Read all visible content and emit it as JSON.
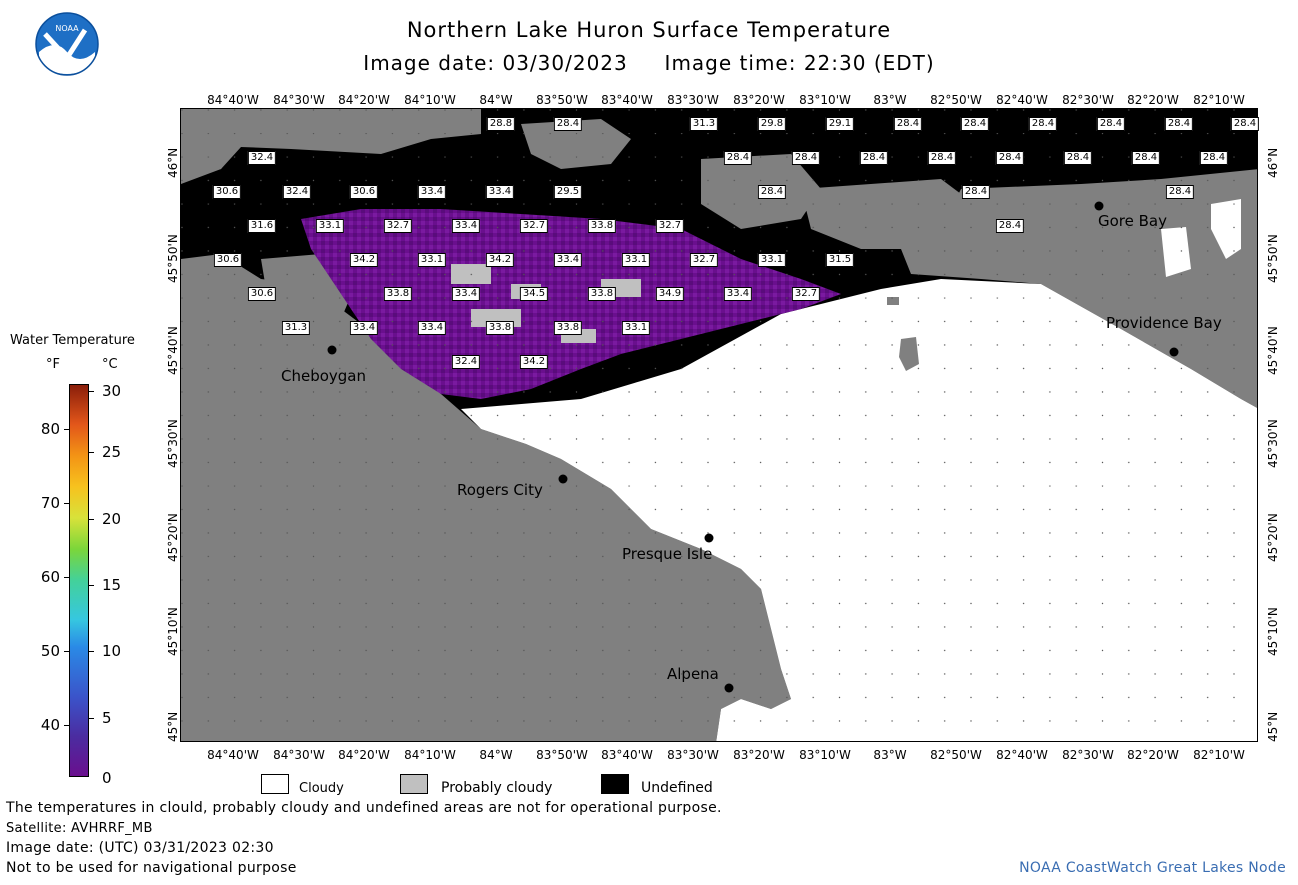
{
  "header": {
    "title": "Northern Lake Huron Surface Temperature",
    "subtitle": "Image date: 03/30/2023     Image time: 22:30 (EDT)",
    "logo_text": "NOAA"
  },
  "map": {
    "lon_labels": [
      "84°40'W",
      "84°30'W",
      "84°20'W",
      "84°10'W",
      "84°W",
      "83°50'W",
      "83°40'W",
      "83°30'W",
      "83°20'W",
      "83°10'W",
      "83°W",
      "82°50'W",
      "82°40'W",
      "82°30'W",
      "82°20'W",
      "82°10'W"
    ],
    "lat_labels": [
      "46°N",
      "45°50'N",
      "45°40'N",
      "45°30'N",
      "45°20'N",
      "45°10'N",
      "45°N"
    ],
    "cities": [
      {
        "name": "Cheboygan"
      },
      {
        "name": "Rogers City"
      },
      {
        "name": "Presque Isle"
      },
      {
        "name": "Alpena"
      },
      {
        "name": "Gore Bay"
      },
      {
        "name": "Providence Bay"
      }
    ],
    "temp_labels": [
      "28.8",
      "28.4",
      "31.3",
      "29.8",
      "29.1",
      "28.4",
      "28.4",
      "28.4",
      "28.4",
      "28.4",
      "28.4",
      "28.4",
      "28.4",
      "28.4",
      "28.4",
      "28.4",
      "28.4",
      "28.4",
      "28.4",
      "28.4",
      "32.4",
      "30.6",
      "32.4",
      "30.6",
      "33.4",
      "33.4",
      "29.5",
      "28.4",
      "28.4",
      "31.6",
      "33.1",
      "32.7",
      "33.4",
      "32.7",
      "33.8",
      "32.7",
      "28.4",
      "30.6",
      "34.2",
      "33.1",
      "34.2",
      "33.4",
      "33.1",
      "32.7",
      "33.1",
      "31.5",
      "30.6",
      "33.8",
      "33.4",
      "34.5",
      "33.8",
      "34.9",
      "33.4",
      "32.7",
      "31.3",
      "33.4",
      "33.4",
      "33.8",
      "33.8",
      "33.1",
      "32.4",
      "34.2"
    ],
    "colors": {
      "land": "#808080",
      "cloud": "#ffffff",
      "undefined": "#000000",
      "water_cold": "#6a0f8e",
      "probably_cloudy": "#c0c0c0"
    }
  },
  "legend": {
    "title": "Water Temperature",
    "unit_f": "°F",
    "unit_c": "°C",
    "ticks_f": [
      "80",
      "70",
      "60",
      "50",
      "40"
    ],
    "ticks_c": [
      "30",
      "25",
      "20",
      "15",
      "10",
      "5",
      "0"
    ],
    "cloudy": "Cloudy",
    "probably_cloudy": "Probably cloudy",
    "undefined": "Undefined"
  },
  "footer": {
    "line1": "The temperatures in clould, probably cloudy and undefined areas are not for operational purpose.",
    "line2": "Satellite: AVHRRF_MB",
    "line3": "Image date: (UTC) 03/31/2023  02:30",
    "line4": "Not to be used for navigational purpose",
    "credit": "NOAA CoastWatch Great Lakes Node"
  }
}
